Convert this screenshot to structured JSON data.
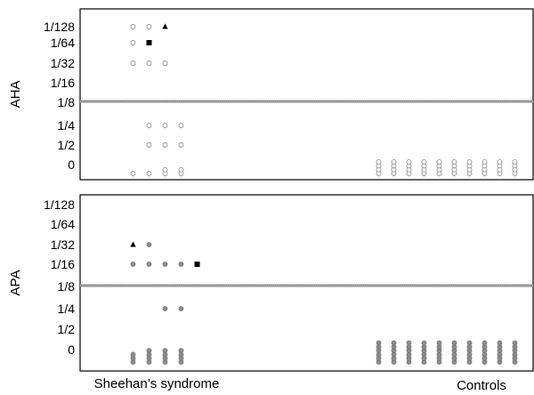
{
  "chart_data": [
    {
      "type": "scatter",
      "ylabel": "AHA",
      "yticks": [
        "1/128",
        "1/64",
        "1/32",
        "1/16",
        "1/8",
        "1/4",
        "1/2",
        "0"
      ],
      "cutoff": "1/8",
      "groups": [
        "Sheehan’s syndrome",
        "Controls"
      ],
      "open_marker_color": "#909090",
      "threshold_line_color": "#8a8a8a",
      "points": [
        {
          "group": "Sheehan’s syndrome",
          "column": 1,
          "titer": "1/128",
          "count": 1,
          "marker": "open-circle"
        },
        {
          "group": "Sheehan’s syndrome",
          "column": 2,
          "titer": "1/128",
          "count": 1,
          "marker": "open-circle"
        },
        {
          "group": "Sheehan’s syndrome",
          "column": 3,
          "titer": "1/128",
          "count": 1,
          "marker": "triangle"
        },
        {
          "group": "Sheehan’s syndrome",
          "column": 1,
          "titer": "1/64",
          "count": 1,
          "marker": "open-circle"
        },
        {
          "group": "Sheehan’s syndrome",
          "column": 2,
          "titer": "1/64",
          "count": 1,
          "marker": "square"
        },
        {
          "group": "Sheehan’s syndrome",
          "column": 1,
          "titer": "1/32",
          "count": 1,
          "marker": "open-circle"
        },
        {
          "group": "Sheehan’s syndrome",
          "column": 2,
          "titer": "1/32",
          "count": 1,
          "marker": "open-circle"
        },
        {
          "group": "Sheehan’s syndrome",
          "column": 3,
          "titer": "1/32",
          "count": 1,
          "marker": "open-circle"
        },
        {
          "group": "Sheehan’s syndrome",
          "column": 2,
          "titer": "1/4",
          "count": 1,
          "marker": "open-circle"
        },
        {
          "group": "Sheehan’s syndrome",
          "column": 3,
          "titer": "1/4",
          "count": 1,
          "marker": "open-circle"
        },
        {
          "group": "Sheehan’s syndrome",
          "column": 4,
          "titer": "1/4",
          "count": 1,
          "marker": "open-circle"
        },
        {
          "group": "Sheehan’s syndrome",
          "column": 2,
          "titer": "1/2",
          "count": 1,
          "marker": "open-circle"
        },
        {
          "group": "Sheehan’s syndrome",
          "column": 3,
          "titer": "1/2",
          "count": 1,
          "marker": "open-circle"
        },
        {
          "group": "Sheehan’s syndrome",
          "column": 4,
          "titer": "1/2",
          "count": 1,
          "marker": "open-circle"
        },
        {
          "group": "Sheehan’s syndrome",
          "column": 1,
          "titer": "0",
          "count": 1,
          "marker": "open-circle"
        },
        {
          "group": "Sheehan’s syndrome",
          "column": 2,
          "titer": "0",
          "count": 1,
          "marker": "open-circle"
        },
        {
          "group": "Sheehan’s syndrome",
          "column": 3,
          "titer": "0",
          "count": 2,
          "marker": "open-circle"
        },
        {
          "group": "Sheehan’s syndrome",
          "column": 4,
          "titer": "0",
          "count": 2,
          "marker": "open-circle"
        },
        {
          "group": "Controls",
          "column": 1,
          "titer": "0",
          "count": 4,
          "marker": "open-circle"
        },
        {
          "group": "Controls",
          "column": 2,
          "titer": "0",
          "count": 4,
          "marker": "open-circle"
        },
        {
          "group": "Controls",
          "column": 3,
          "titer": "0",
          "count": 4,
          "marker": "open-circle"
        },
        {
          "group": "Controls",
          "column": 4,
          "titer": "0",
          "count": 4,
          "marker": "open-circle"
        },
        {
          "group": "Controls",
          "column": 5,
          "titer": "0",
          "count": 4,
          "marker": "open-circle"
        },
        {
          "group": "Controls",
          "column": 6,
          "titer": "0",
          "count": 4,
          "marker": "open-circle"
        },
        {
          "group": "Controls",
          "column": 7,
          "titer": "0",
          "count": 4,
          "marker": "open-circle"
        },
        {
          "group": "Controls",
          "column": 8,
          "titer": "0",
          "count": 4,
          "marker": "open-circle"
        },
        {
          "group": "Controls",
          "column": 9,
          "titer": "0",
          "count": 4,
          "marker": "open-circle"
        },
        {
          "group": "Controls",
          "column": 10,
          "titer": "0",
          "count": 4,
          "marker": "open-circle"
        }
      ]
    },
    {
      "type": "scatter",
      "ylabel": "APA",
      "yticks": [
        "1/128",
        "1/64",
        "1/32",
        "1/16",
        "1/8",
        "1/4",
        "1/2",
        "0"
      ],
      "cutoff": "1/8",
      "groups": [
        "Sheehan’s syndrome",
        "Controls"
      ],
      "filled_marker_color": "#8c8c8c",
      "threshold_line_color": "#8a8a8a",
      "points": [
        {
          "group": "Sheehan’s syndrome",
          "column": 1,
          "titer": "1/32",
          "count": 1,
          "marker": "triangle"
        },
        {
          "group": "Sheehan’s syndrome",
          "column": 2,
          "titer": "1/32",
          "count": 1,
          "marker": "filled-circle"
        },
        {
          "group": "Sheehan’s syndrome",
          "column": 1,
          "titer": "1/16",
          "count": 1,
          "marker": "filled-circle"
        },
        {
          "group": "Sheehan’s syndrome",
          "column": 2,
          "titer": "1/16",
          "count": 1,
          "marker": "filled-circle"
        },
        {
          "group": "Sheehan’s syndrome",
          "column": 3,
          "titer": "1/16",
          "count": 1,
          "marker": "filled-circle"
        },
        {
          "group": "Sheehan’s syndrome",
          "column": 4,
          "titer": "1/16",
          "count": 1,
          "marker": "filled-circle"
        },
        {
          "group": "Sheehan’s syndrome",
          "column": 5,
          "titer": "1/16",
          "count": 1,
          "marker": "square"
        },
        {
          "group": "Sheehan’s syndrome",
          "column": 3,
          "titer": "1/4",
          "count": 1,
          "marker": "filled-circle"
        },
        {
          "group": "Sheehan’s syndrome",
          "column": 4,
          "titer": "1/4",
          "count": 1,
          "marker": "filled-circle"
        },
        {
          "group": "Sheehan’s syndrome",
          "column": 1,
          "titer": "0",
          "count": 3,
          "marker": "filled-circle"
        },
        {
          "group": "Sheehan’s syndrome",
          "column": 2,
          "titer": "0",
          "count": 4,
          "marker": "filled-circle"
        },
        {
          "group": "Sheehan’s syndrome",
          "column": 3,
          "titer": "0",
          "count": 4,
          "marker": "filled-circle"
        },
        {
          "group": "Sheehan’s syndrome",
          "column": 4,
          "titer": "0",
          "count": 4,
          "marker": "filled-circle"
        },
        {
          "group": "Controls",
          "column": 1,
          "titer": "0",
          "count": 6,
          "marker": "filled-circle"
        },
        {
          "group": "Controls",
          "column": 2,
          "titer": "0",
          "count": 6,
          "marker": "filled-circle"
        },
        {
          "group": "Controls",
          "column": 3,
          "titer": "0",
          "count": 6,
          "marker": "filled-circle"
        },
        {
          "group": "Controls",
          "column": 4,
          "titer": "0",
          "count": 6,
          "marker": "filled-circle"
        },
        {
          "group": "Controls",
          "column": 5,
          "titer": "0",
          "count": 6,
          "marker": "filled-circle"
        },
        {
          "group": "Controls",
          "column": 6,
          "titer": "0",
          "count": 6,
          "marker": "filled-circle"
        },
        {
          "group": "Controls",
          "column": 7,
          "titer": "0",
          "count": 6,
          "marker": "filled-circle"
        },
        {
          "group": "Controls",
          "column": 8,
          "titer": "0",
          "count": 6,
          "marker": "filled-circle"
        },
        {
          "group": "Controls",
          "column": 9,
          "titer": "0",
          "count": 6,
          "marker": "filled-circle"
        },
        {
          "group": "Controls",
          "column": 10,
          "titer": "0",
          "count": 6,
          "marker": "filled-circle"
        }
      ]
    }
  ],
  "group_labels": [
    "Sheehan’s syndrome",
    "Controls"
  ]
}
